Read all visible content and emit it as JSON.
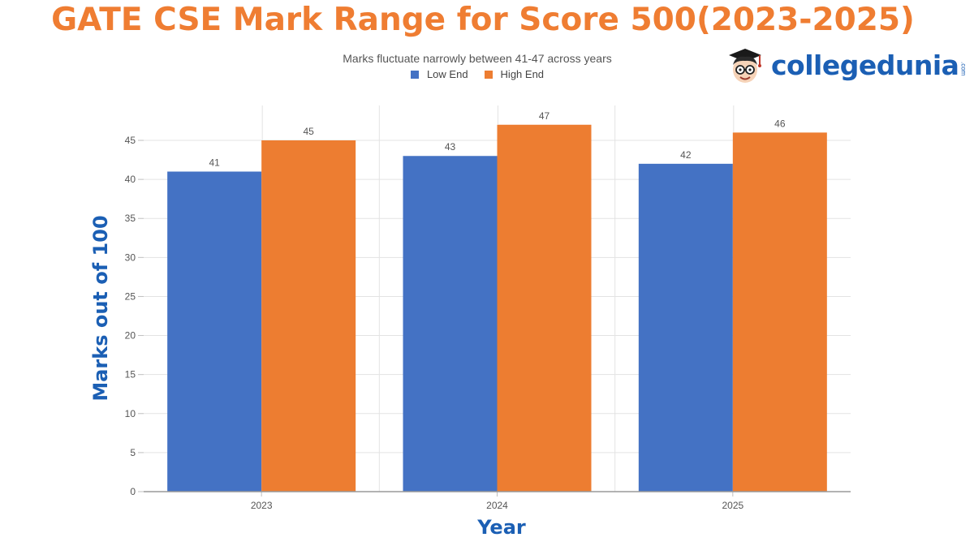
{
  "header": {
    "title": "GATE CSE Mark Range for Score 500(2023-2025)"
  },
  "brand": {
    "name": "collegedunia",
    "suffix": ".com",
    "mascot_icon": "student-mascot-icon",
    "color": "#1b5fb4"
  },
  "chart_data": {
    "type": "bar",
    "subtitle": "Marks fluctuate narrowly between 41-47 across years",
    "categories": [
      "2023",
      "2024",
      "2025"
    ],
    "series": [
      {
        "name": "Low End",
        "values": [
          41,
          43,
          42
        ],
        "color": "#4472c4"
      },
      {
        "name": "High End",
        "values": [
          45,
          47,
          46
        ],
        "color": "#ed7d31"
      }
    ],
    "xlabel": "Year",
    "ylabel": "Marks out of 100",
    "ylim": [
      0,
      45
    ],
    "yticks": [
      0,
      5,
      10,
      15,
      20,
      25,
      30,
      35,
      40,
      45
    ],
    "grid": true,
    "legend_position": "top-center",
    "data_labels": true
  }
}
